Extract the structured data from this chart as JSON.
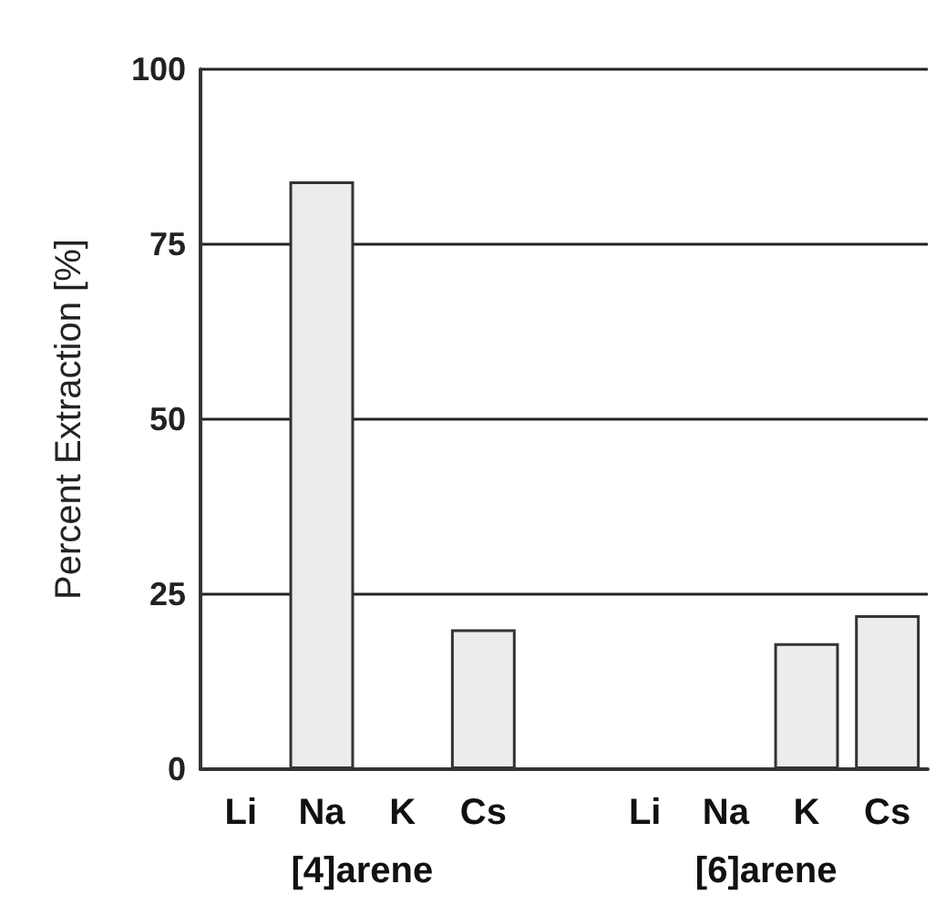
{
  "chart_data": {
    "type": "bar",
    "ylabel": "Percent Extraction [%]",
    "categories": [
      "Li",
      "Na",
      "K",
      "Cs",
      null,
      "Li",
      "Na",
      "K",
      "Cs"
    ],
    "values": [
      0,
      84,
      0,
      20,
      null,
      0,
      0,
      18,
      22
    ],
    "color": "#ececec",
    "ylim": [
      0,
      100
    ],
    "yticks": [
      0,
      25,
      50,
      75,
      100
    ],
    "grid": "y",
    "annotations": [
      "[4]arene",
      "[6]arene"
    ]
  }
}
